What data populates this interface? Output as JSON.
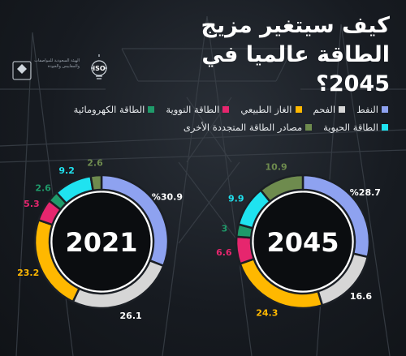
{
  "title": "كيف سيتغير مزيج الطاقة عالميا في 2045؟",
  "logo": {
    "icon": "iso-lightbulb-logo",
    "text": "الهيئة السعودية للمواصفات والمقاييس والجودة"
  },
  "legend": [
    {
      "label": "النفط",
      "color": "#8ea2f0"
    },
    {
      "label": "الفحم",
      "color": "#d6d6d6"
    },
    {
      "label": "الغاز الطبيعي",
      "color": "#ffb800"
    },
    {
      "label": "الطاقة النووية",
      "color": "#e6266e"
    },
    {
      "label": "الطاقة الكهرومائية",
      "color": "#1f9a6a"
    },
    {
      "label": "الطاقة الحيوية",
      "color": "#1fe3f0"
    },
    {
      "label": "مصادر الطاقة المتجددة الأخرى",
      "color": "#6e8b4e"
    }
  ],
  "chart_data": [
    {
      "type": "pie",
      "title": "2021",
      "categories": [
        "النفط",
        "الفحم",
        "الغاز الطبيعي",
        "الطاقة النووية",
        "الطاقة الكهرومائية",
        "الطاقة الحيوية",
        "مصادر الطاقة المتجددة الأخرى"
      ],
      "values": [
        30.9,
        26.1,
        23.2,
        5.3,
        2.6,
        9.2,
        2.6
      ],
      "labels": [
        "%30.9",
        "26.1",
        "23.2",
        "5.3",
        "2.6",
        "9.2",
        "2.6"
      ]
    },
    {
      "type": "pie",
      "title": "2045",
      "categories": [
        "النفط",
        "الفحم",
        "الغاز الطبيعي",
        "الطاقة النووية",
        "الطاقة الكهرومائية",
        "الطاقة الحيوية",
        "مصادر الطاقة المتجددة الأخرى"
      ],
      "values": [
        28.7,
        16.6,
        24.3,
        6.6,
        3,
        9.9,
        10.9
      ],
      "labels": [
        "%28.7",
        "16.6",
        "24.3",
        "6.6",
        "3",
        "9.9",
        "10.9"
      ]
    }
  ]
}
